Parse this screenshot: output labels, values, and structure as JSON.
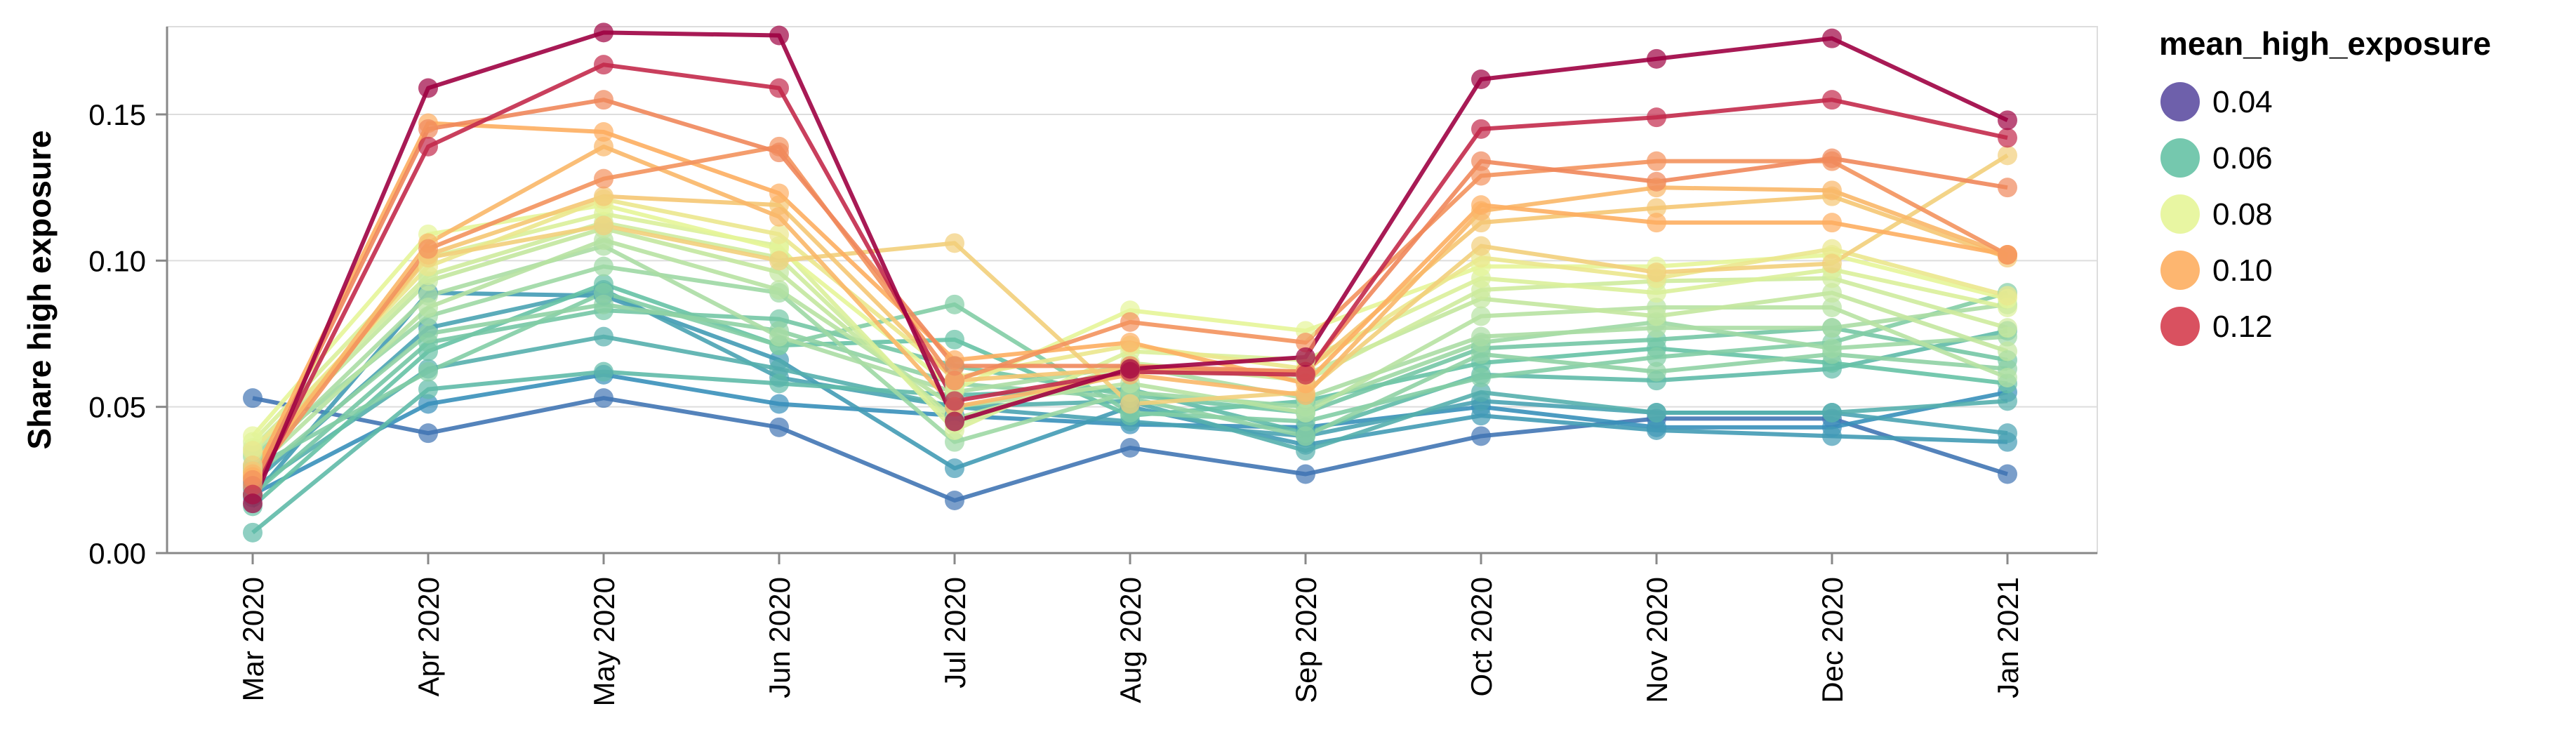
{
  "chart_data": {
    "type": "line",
    "ylabel": "Share high exposure",
    "xlabel": "",
    "categories": [
      "Mar 2020",
      "Apr 2020",
      "May 2020",
      "Jun 2020",
      "Jul 2020",
      "Aug 2020",
      "Sep 2020",
      "Oct 2020",
      "Nov 2020",
      "Dec 2020",
      "Jan 2021"
    ],
    "ylim": [
      0,
      0.18
    ],
    "yticks": [
      0,
      0.05,
      0.1,
      0.15
    ],
    "ytick_labels": [
      "0.00",
      "0.05",
      "0.10",
      "0.15"
    ],
    "grid": true,
    "legend": {
      "title": "mean_high_exposure",
      "placement": "right",
      "entries": [
        {
          "label": "0.04",
          "color": "#5e4fa2"
        },
        {
          "label": "0.06",
          "color": "#66c2a5"
        },
        {
          "label": "0.08",
          "color": "#e6f598"
        },
        {
          "label": "0.10",
          "color": "#fdae61"
        },
        {
          "label": "0.12",
          "color": "#d53e4f"
        }
      ]
    },
    "color_scale": {
      "domain": [
        0.03,
        0.045,
        0.06,
        0.075,
        0.09,
        0.105,
        0.125,
        0.14
      ],
      "range": [
        "#5e4fa2",
        "#3288bd",
        "#66c2a5",
        "#abdda4",
        "#e6f598",
        "#fdae61",
        "#d53e4f",
        "#9e0142"
      ]
    },
    "series": [
      {
        "color_value": 0.04,
        "values": [
          0.053,
          0.041,
          0.053,
          0.043,
          0.018,
          0.036,
          0.027,
          0.04,
          0.046,
          0.046,
          0.027
        ]
      },
      {
        "color_value": 0.047,
        "values": [
          0.02,
          0.051,
          0.061,
          0.051,
          0.047,
          0.044,
          0.043,
          0.05,
          0.043,
          0.043,
          0.055
        ]
      },
      {
        "color_value": 0.05,
        "values": [
          0.019,
          0.089,
          0.088,
          0.066,
          0.029,
          0.05,
          0.037,
          0.047,
          0.042,
          0.04,
          0.038
        ]
      },
      {
        "color_value": 0.052,
        "values": [
          0.024,
          0.077,
          0.09,
          0.06,
          0.05,
          0.045,
          0.04,
          0.052,
          0.048,
          0.048,
          0.041
        ]
      },
      {
        "color_value": 0.055,
        "values": [
          0.022,
          0.063,
          0.074,
          0.063,
          0.05,
          0.052,
          0.035,
          0.055,
          0.048,
          0.048,
          0.052
        ]
      },
      {
        "color_value": 0.058,
        "values": [
          0.007,
          0.056,
          0.062,
          0.058,
          0.054,
          0.056,
          0.041,
          0.061,
          0.059,
          0.063,
          0.076
        ]
      },
      {
        "color_value": 0.06,
        "values": [
          0.016,
          0.069,
          0.092,
          0.071,
          0.073,
          0.047,
          0.052,
          0.065,
          0.07,
          0.065,
          0.058
        ]
      },
      {
        "color_value": 0.063,
        "values": [
          0.02,
          0.072,
          0.083,
          0.08,
          0.064,
          0.054,
          0.048,
          0.07,
          0.073,
          0.077,
          0.066
        ]
      },
      {
        "color_value": 0.066,
        "values": [
          0.029,
          0.062,
          0.089,
          0.071,
          0.085,
          0.048,
          0.045,
          0.06,
          0.067,
          0.072,
          0.089
        ]
      },
      {
        "color_value": 0.069,
        "values": [
          0.026,
          0.075,
          0.085,
          0.076,
          0.058,
          0.053,
          0.04,
          0.068,
          0.062,
          0.068,
          0.063
        ]
      },
      {
        "color_value": 0.072,
        "values": [
          0.033,
          0.081,
          0.098,
          0.089,
          0.038,
          0.055,
          0.05,
          0.072,
          0.079,
          0.07,
          0.074
        ]
      },
      {
        "color_value": 0.075,
        "values": [
          0.03,
          0.088,
          0.105,
          0.074,
          0.055,
          0.064,
          0.053,
          0.074,
          0.077,
          0.077,
          0.085
        ]
      },
      {
        "color_value": 0.078,
        "values": [
          0.028,
          0.084,
          0.107,
          0.09,
          0.05,
          0.058,
          0.048,
          0.081,
          0.084,
          0.084,
          0.06
        ]
      },
      {
        "color_value": 0.081,
        "values": [
          0.034,
          0.093,
          0.111,
          0.096,
          0.046,
          0.062,
          0.061,
          0.087,
          0.081,
          0.089,
          0.069
        ]
      },
      {
        "color_value": 0.084,
        "values": [
          0.036,
          0.095,
          0.113,
          0.101,
          0.044,
          0.065,
          0.059,
          0.09,
          0.093,
          0.094,
          0.077
        ]
      },
      {
        "color_value": 0.087,
        "values": [
          0.038,
          0.101,
          0.116,
          0.105,
          0.042,
          0.069,
          0.066,
          0.094,
          0.089,
          0.097,
          0.084
        ]
      },
      {
        "color_value": 0.09,
        "values": [
          0.04,
          0.109,
          0.119,
          0.104,
          0.056,
          0.083,
          0.076,
          0.098,
          0.098,
          0.102,
          0.087
        ]
      },
      {
        "color_value": 0.093,
        "values": [
          0.035,
          0.098,
          0.121,
          0.109,
          0.06,
          0.071,
          0.063,
          0.101,
          0.094,
          0.104,
          0.088
        ]
      },
      {
        "color_value": 0.098,
        "values": [
          0.03,
          0.101,
          0.112,
          0.1,
          0.106,
          0.051,
          0.055,
          0.105,
          0.096,
          0.099,
          0.136
        ]
      },
      {
        "color_value": 0.1,
        "values": [
          0.028,
          0.102,
          0.122,
          0.119,
          0.059,
          0.063,
          0.062,
          0.113,
          0.118,
          0.122,
          0.101
        ]
      },
      {
        "color_value": 0.103,
        "values": [
          0.027,
          0.106,
          0.139,
          0.115,
          0.05,
          0.061,
          0.054,
          0.117,
          0.125,
          0.124,
          0.102
        ]
      },
      {
        "color_value": 0.105,
        "values": [
          0.026,
          0.147,
          0.144,
          0.123,
          0.066,
          0.072,
          0.058,
          0.119,
          0.113,
          0.113,
          0.102
        ]
      },
      {
        "color_value": 0.11,
        "values": [
          0.025,
          0.104,
          0.128,
          0.139,
          0.059,
          0.079,
          0.072,
          0.129,
          0.134,
          0.134,
          0.102
        ]
      },
      {
        "color_value": 0.112,
        "values": [
          0.023,
          0.145,
          0.155,
          0.137,
          0.064,
          0.064,
          0.062,
          0.134,
          0.127,
          0.135,
          0.125
        ]
      },
      {
        "color_value": 0.13,
        "values": [
          0.02,
          0.139,
          0.167,
          0.159,
          0.052,
          0.062,
          0.061,
          0.145,
          0.149,
          0.155,
          0.142
        ]
      },
      {
        "color_value": 0.14,
        "values": [
          0.017,
          0.159,
          0.178,
          0.177,
          0.045,
          0.063,
          0.067,
          0.162,
          0.169,
          0.176,
          0.148
        ]
      }
    ]
  }
}
